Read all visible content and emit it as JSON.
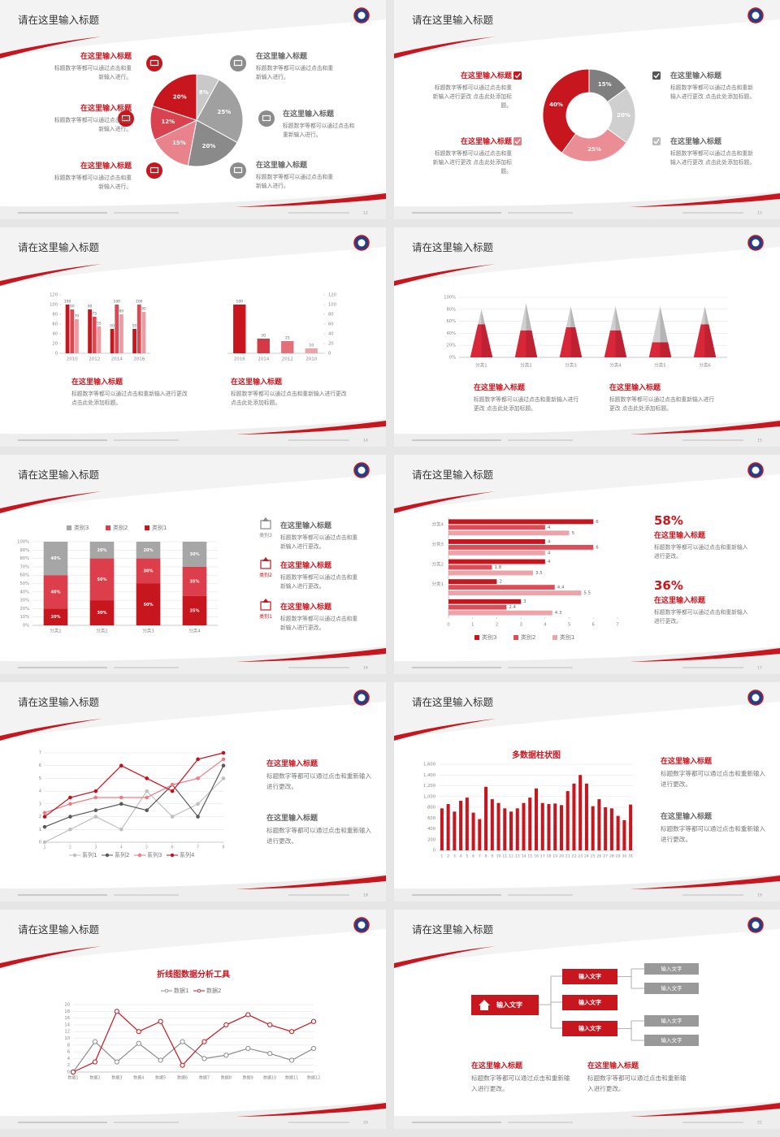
{
  "slides": [
    {
      "title": "请在这里输入标题",
      "page": "12",
      "items": [
        {
          "title": "在这里输入标题",
          "text": "标题数字等都可以通过点击和重新输入进行。"
        },
        {
          "title": "在这里输入标题",
          "text": "标题数字等都可以通过点击和重新输入进行。"
        },
        {
          "title": "在这里输入标题",
          "text": "标题数字等都可以通过点击和重新输入进行。"
        },
        {
          "title": "在这里输入标题",
          "text": "标题数字等都可以通过点击和重新输入进行。"
        },
        {
          "title": "在这里输入标题",
          "text": "标题数字等都可以通过点击和重新输入进行。"
        },
        {
          "title": "在这里输入标题",
          "text": "标题数字等都可以通过点击和重新输入进行。"
        }
      ]
    },
    {
      "title": "请在这里输入标题",
      "page": "13",
      "items": [
        {
          "title": "在这里输入标题",
          "text": "标题数字等都可以通过点击和重新输入进行更改 点击此处添加标题。"
        },
        {
          "title": "在这里输入标题",
          "text": "标题数字等都可以通过点击和重新输入进行更改 点击此处添加标题。"
        },
        {
          "title": "在这里输入标题",
          "text": "标题数字等都可以通过点击和重新输入进行更改 点击此处添加标题。"
        },
        {
          "title": "在这里输入标题",
          "text": "标题数字等都可以通过点击和重新输入进行更改 点击此处添加标题。"
        }
      ]
    },
    {
      "title": "请在这里输入标题",
      "page": "14",
      "items": [
        {
          "title": "在这里输入标题",
          "text": "标题数字等都可以通过点击和重新输入进行更改 点击此处添加标题。"
        },
        {
          "title": "在这里输入标题",
          "text": "标题数字等都可以通过点击和重新输入进行更改 点击此处添加标题。"
        }
      ]
    },
    {
      "title": "请在这里输入标题",
      "page": "15",
      "items": [
        {
          "title": "在这里输入标题",
          "text": "标题数字等都可以通过点击和重新输入进行更改 点击此处添加标题。"
        },
        {
          "title": "在这里输入标题",
          "text": "标题数字等都可以通过点击和重新输入进行更改 点击此处添加标题。"
        }
      ]
    },
    {
      "title": "请在这里输入标题",
      "page": "16",
      "items": [
        {
          "title": "在这里输入标题",
          "text": "标题数字等都可以通过点击和重新输入进行更改。",
          "tag": "类别3"
        },
        {
          "title": "在这里输入标题",
          "text": "标题数字等都可以通过点击和重新输入进行更改。",
          "tag": "类别2"
        },
        {
          "title": "在这里输入标题",
          "text": "标题数字等都可以通过点击和重新输入进行更改。",
          "tag": "类别1"
        }
      ]
    },
    {
      "title": "请在这里输入标题",
      "page": "17",
      "items": [
        {
          "stat": "58%",
          "title": "在这里输入标题",
          "text": "标题数字等都可以通过点击和重新输入进行更改。"
        },
        {
          "stat": "36%",
          "title": "在这里输入标题",
          "text": "标题数字等都可以通过点击和重新输入进行更改。"
        }
      ]
    },
    {
      "title": "请在这里输入标题",
      "page": "18",
      "items": [
        {
          "title": "在这里输入标题",
          "text": "标题数字等都可以通过点击和重新输入进行更改。"
        },
        {
          "title": "在这里输入标题",
          "text": "标题数字等都可以通过点击和重新输入进行更改。"
        }
      ]
    },
    {
      "title": "请在这里输入标题",
      "page": "19",
      "items": [
        {
          "title": "在这里输入标题",
          "text": "标题数字等都可以通过点击和重新输入进行更改。"
        },
        {
          "title": "在这里输入标题",
          "text": "标题数字等都可以通过点击和重新输入进行更改。"
        }
      ]
    },
    {
      "title": "请在这里输入标题",
      "page": "20",
      "items": []
    },
    {
      "title": "请在这里输入标题",
      "page": "21",
      "items": [
        {
          "title": "在这里输入标题",
          "text": "标题数字等都可以通过点击和重新输入进行更改。"
        },
        {
          "title": "在这里输入标题",
          "text": "标题数字等都可以通过点击和重新输入进行更改。"
        }
      ]
    }
  ],
  "diagram": {
    "root": "输入文字",
    "children": [
      {
        "label": "输入文字",
        "children": [
          "输入文字",
          "输入文字"
        ]
      },
      {
        "label": "输入文字",
        "children": []
      },
      {
        "label": "输入文字",
        "children": [
          "输入文字",
          "输入文字"
        ]
      }
    ]
  },
  "chart_data": [
    {
      "type": "pie",
      "values": [
        8,
        25,
        20,
        15,
        12,
        20
      ],
      "value_labels": [
        "8%",
        "25%",
        "20%",
        "15%",
        "12%",
        "20%"
      ],
      "colors": [
        "#c9c9c9",
        "#a0a0a0",
        "#8a8a8a",
        "#e9838b",
        "#d9434f",
        "#c8161e"
      ]
    },
    {
      "type": "donut",
      "values": [
        15,
        20,
        25,
        40
      ],
      "value_labels": [
        "15%",
        "20%",
        "25%",
        "40%"
      ],
      "colors": [
        "#7f7f7f",
        "#cfcfcf",
        "#eb8d94",
        "#c8161e"
      ]
    },
    {
      "type": "bar",
      "categories": [
        "2010",
        "2012",
        "2014",
        "2016"
      ],
      "series": [
        {
          "color": "#c8161e",
          "values": [
            100,
            90,
            50,
            50
          ]
        },
        {
          "color": "#dc4852",
          "values": [
            90,
            75,
            100,
            100
          ]
        },
        {
          "color": "#ee9aa0",
          "values": [
            70,
            55,
            80,
            85
          ]
        }
      ],
      "ylim": [
        0,
        120
      ],
      "yticks": [
        0,
        20,
        40,
        60,
        80,
        100,
        120
      ],
      "grid": false,
      "show_values": true
    },
    {
      "type": "bar",
      "categories": [
        "2016",
        "2014",
        "2012",
        "2010"
      ],
      "values": [
        100,
        30,
        25,
        10
      ],
      "colors": [
        "#c8161e",
        "#d43a45",
        "#e2707a",
        "#eea2a8"
      ],
      "ylim": [
        0,
        120
      ],
      "yticks": [
        0,
        20,
        40,
        60,
        80,
        100,
        120
      ],
      "y_axis_position": "right",
      "grid": false,
      "show_values": true
    },
    {
      "type": "pyramid",
      "categories": [
        "分类1",
        "分类2",
        "分类3",
        "分类4",
        "分类5",
        "分类6"
      ],
      "series": [
        {
          "color": "#d9273a",
          "values": [
            55,
            45,
            50,
            45,
            25,
            55
          ]
        },
        {
          "color": "#cfcfcf",
          "values": [
            25,
            45,
            35,
            40,
            60,
            30
          ]
        }
      ],
      "ylim": [
        0,
        100
      ],
      "yticks": [
        {
          "value": 0,
          "label": "0%"
        },
        {
          "value": 20,
          "label": "20%"
        },
        {
          "value": 40,
          "label": "40%"
        },
        {
          "value": 60,
          "label": "60%"
        },
        {
          "value": 80,
          "label": "80%"
        },
        {
          "value": 100,
          "label": "100%"
        }
      ],
      "grid": true
    },
    {
      "type": "bar",
      "stacked": true,
      "categories": [
        "分类1",
        "分类2",
        "分类3",
        "分类4"
      ],
      "series": [
        {
          "name": "类别1",
          "color": "#c8161e",
          "values": [
            20,
            30,
            50,
            35
          ],
          "value_labels": [
            "20%",
            "30%",
            "50%",
            "35%"
          ]
        },
        {
          "name": "类别2",
          "color": "#dc3f4b",
          "values": [
            40,
            50,
            30,
            35
          ],
          "value_labels": [
            "40%",
            "50%",
            "30%",
            "35%"
          ]
        },
        {
          "name": "类别3",
          "color": "#a6a6a6",
          "values": [
            40,
            20,
            20,
            30
          ],
          "value_labels": [
            "40%",
            "20%",
            "20%",
            "30%"
          ]
        }
      ],
      "ylim": [
        0,
        100
      ],
      "yticks": [
        {
          "value": 0,
          "label": "0%"
        },
        {
          "value": 10,
          "label": "10%"
        },
        {
          "value": 20,
          "label": "20%"
        },
        {
          "value": 30,
          "label": "30%"
        },
        {
          "value": 40,
          "label": "40%"
        },
        {
          "value": 50,
          "label": "50%"
        },
        {
          "value": 60,
          "label": "60%"
        },
        {
          "value": 70,
          "label": "70%"
        },
        {
          "value": 80,
          "label": "80%"
        },
        {
          "value": 90,
          "label": "90%"
        },
        {
          "value": 100,
          "label": "100%"
        }
      ],
      "grid": true,
      "legend": "top"
    },
    {
      "type": "bar",
      "horizontal": true,
      "categories": [
        "分类4",
        "分类3",
        "分类2",
        "分类1",
        null
      ],
      "series": [
        {
          "name": "类别3",
          "color": "#c8161e",
          "values": [
            6,
            4,
            4,
            2,
            3
          ]
        },
        {
          "name": "类别2",
          "color": "#dd4d58",
          "values": [
            4,
            6,
            1.8,
            4.4,
            2.4
          ]
        },
        {
          "name": "类别1",
          "color": "#eea3a9",
          "values": [
            5,
            4,
            3.5,
            5.5,
            4.3
          ]
        }
      ],
      "xlim": [
        0,
        7
      ],
      "xticks": [
        0,
        1,
        2,
        3,
        4,
        5,
        6,
        7
      ],
      "grid": false,
      "show_values": true,
      "legend": "bottom"
    },
    {
      "type": "line",
      "x": [
        1,
        2,
        3,
        4,
        5,
        6,
        7,
        8
      ],
      "xlim": [
        1,
        8
      ],
      "xticks": [
        1,
        2,
        3,
        4,
        5,
        6,
        7,
        8
      ],
      "series": [
        {
          "name": "系列1",
          "color": "#bfbfbf",
          "values": [
            0,
            1,
            2,
            1,
            4,
            2,
            3,
            5
          ]
        },
        {
          "name": "系列2",
          "color": "#595959",
          "values": [
            1.2,
            2,
            2.5,
            3,
            2.5,
            4.5,
            2,
            6
          ]
        },
        {
          "name": "系列3",
          "color": "#ee7a84",
          "values": [
            2.3,
            3,
            3.5,
            3.5,
            3.5,
            4.5,
            5,
            6.5
          ]
        },
        {
          "name": "系列4",
          "color": "#c0101c",
          "values": [
            2,
            3.5,
            4,
            6,
            5,
            4,
            6.5,
            7
          ]
        }
      ],
      "ylim": [
        0,
        7
      ],
      "yticks": [
        0,
        1,
        2,
        3,
        4,
        5,
        6,
        7
      ],
      "grid": true,
      "legend": "bottom"
    },
    {
      "type": "bar",
      "title": "多数据柱状图",
      "categories": [
        "1",
        "2",
        "3",
        "4",
        "5",
        "6",
        "7",
        "8",
        "9",
        "10",
        "11",
        "12",
        "13",
        "14",
        "15",
        "16",
        "17",
        "18",
        "19",
        "20",
        "21",
        "22",
        "23",
        "24",
        "25",
        "26",
        "27",
        "28",
        "29",
        "30",
        "31"
      ],
      "values": [
        780,
        860,
        720,
        920,
        980,
        700,
        580,
        1180,
        950,
        880,
        780,
        720,
        780,
        880,
        980,
        1150,
        880,
        860,
        870,
        840,
        1100,
        1240,
        1400,
        1240,
        820,
        950,
        800,
        780,
        640,
        560,
        850
      ],
      "color": "#c8161e",
      "ylim": [
        0,
        1600
      ],
      "yticks": [
        0,
        200,
        400,
        600,
        800,
        {
          "value": 1000,
          "label": "1,000"
        },
        {
          "value": 1200,
          "label": "1,200"
        },
        {
          "value": 1400,
          "label": "1,400"
        },
        {
          "value": 1600,
          "label": "1,600"
        }
      ],
      "grid": true
    },
    {
      "type": "line",
      "title": "折线图数据分析工具",
      "categories": [
        "数据1",
        "数据2",
        "数据3",
        "数据4",
        "数据5",
        "数据6",
        "数据7",
        "数据8",
        "数据9",
        "数据10",
        "数据11",
        "数据12"
      ],
      "series": [
        {
          "name": "数据1",
          "color": "#8c8c8c",
          "marker": "hollow",
          "values": [
            0,
            9,
            3,
            8.5,
            3.5,
            9,
            4,
            5,
            7,
            5.5,
            3.5,
            7
          ]
        },
        {
          "name": "数据2",
          "color": "#c8161e",
          "marker": "hollow",
          "values": [
            0,
            3,
            18,
            12,
            15,
            2,
            9,
            14,
            17,
            14,
            12,
            15
          ]
        }
      ],
      "ylim": [
        0,
        20
      ],
      "yticks": [
        0,
        2,
        4,
        6,
        8,
        10,
        12,
        14,
        16,
        18,
        20
      ],
      "grid": true,
      "legend": "top"
    }
  ]
}
